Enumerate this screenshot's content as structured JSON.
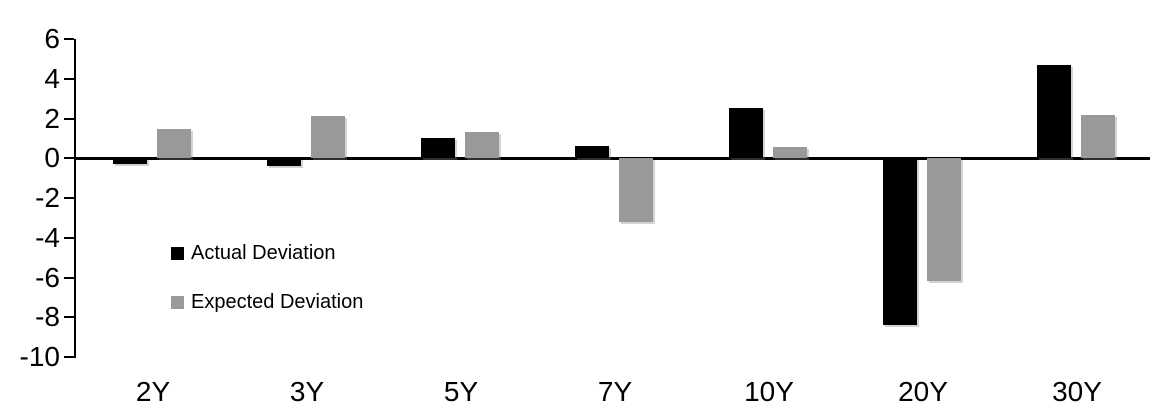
{
  "chart_data": {
    "type": "bar",
    "title": "",
    "xlabel": "",
    "ylabel": "",
    "categories": [
      "2Y",
      "3Y",
      "5Y",
      "7Y",
      "10Y",
      "20Y",
      "30Y"
    ],
    "series": [
      {
        "name": "Actual Deviation",
        "color": "#000000",
        "values": [
          -0.3,
          -0.4,
          1.0,
          0.6,
          2.5,
          -8.4,
          4.7
        ]
      },
      {
        "name": "Expected Deviation",
        "color": "#999999",
        "values": [
          1.45,
          2.1,
          1.3,
          -3.2,
          0.55,
          -6.2,
          2.15
        ]
      }
    ],
    "ylim": [
      -10,
      6
    ],
    "yticks": [
      6,
      4,
      2,
      0,
      -2,
      -4,
      -6,
      -8,
      -10
    ],
    "grid": false,
    "legend_position": "inside-left",
    "background_color": "#ffffff",
    "axis_color": "#000000"
  }
}
